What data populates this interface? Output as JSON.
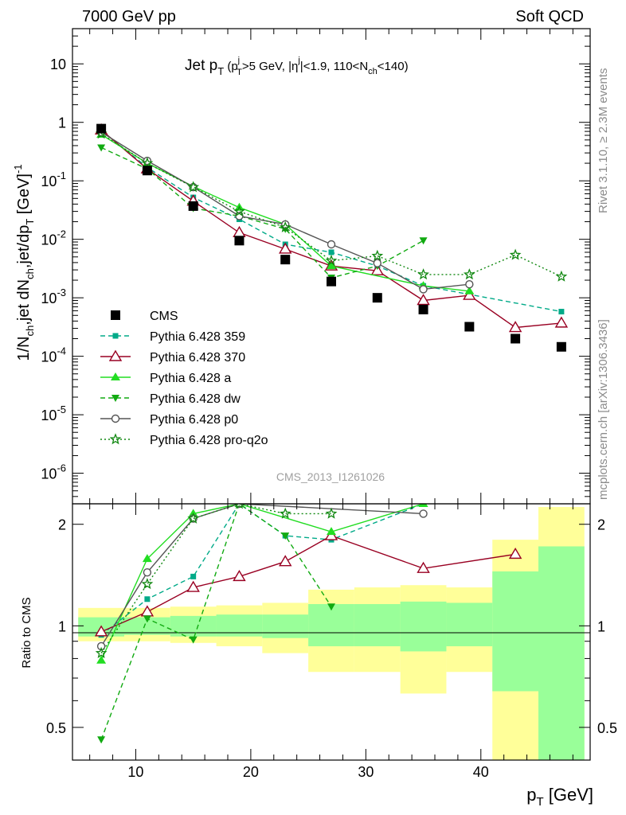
{
  "header": {
    "left_label": "7000 GeV pp",
    "right_label": "Soft QCD"
  },
  "side_labels": {
    "rivet": "Rivet 3.1.10, ≥ 2.3M events",
    "mcplots": "mcplots.cern.ch [arXiv:1306.3436]"
  },
  "watermark": "CMS_2013_I1261026",
  "chart_data": [
    {
      "type": "scatter",
      "panel": "main",
      "title": "Jet pT (pTj>5 GeV, |ηj|<1.9, 110<Nch<140)",
      "xlabel": "pT [GeV]",
      "ylabel": "1/Nch,jet dNch,jet/dpT [GeV]^-1",
      "xlim": [
        4.5,
        49.5
      ],
      "ylim": [
        3e-07,
        40
      ],
      "yscale": "log",
      "grid": false,
      "legend_position": "left-middle",
      "x_ticks": [
        10,
        20,
        30,
        40
      ],
      "y_ticks": [
        "10^-6",
        "10^-5",
        "10^-4",
        "10^-3",
        "10^-2",
        "10^-1",
        "1",
        "10"
      ],
      "series": [
        {
          "name": "CMS",
          "color": "#000000",
          "marker": "square",
          "x": [
            7,
            11,
            15,
            19,
            23,
            27,
            31,
            35,
            39,
            43,
            47
          ],
          "y": [
            0.78,
            0.15,
            0.037,
            0.0095,
            0.0045,
            0.0019,
            0.001,
            0.00063,
            0.00032,
            0.0002,
            0.000145
          ]
        },
        {
          "name": "Pythia 6.428 359",
          "color": "#00aa88",
          "marker": "small-square",
          "dash": "dashed",
          "x": [
            7,
            11,
            15,
            19,
            23,
            27,
            31,
            35,
            47
          ],
          "y": [
            0.73,
            0.17,
            0.052,
            0.022,
            0.0082,
            0.006,
            0.0035,
            0.0016,
            0.00058
          ]
        },
        {
          "name": "Pythia 6.428 370",
          "color": "#990022",
          "marker": "open-triangle",
          "dash": "solid",
          "x": [
            7,
            11,
            15,
            19,
            23,
            27,
            31,
            35,
            39,
            43,
            47
          ],
          "y": [
            0.74,
            0.16,
            0.045,
            0.013,
            0.0068,
            0.0035,
            0.0029,
            0.0009,
            0.0011,
            0.00031,
            0.00037
          ]
        },
        {
          "name": "Pythia 6.428 a",
          "color": "#22dd22",
          "marker": "triangle",
          "dash": "solid",
          "x": [
            7,
            11,
            15,
            19,
            23,
            27,
            35,
            39
          ],
          "y": [
            0.62,
            0.2,
            0.08,
            0.035,
            0.018,
            0.0035,
            0.0016,
            0.0013
          ]
        },
        {
          "name": "Pythia 6.428 dw",
          "color": "#11aa11",
          "marker": "down-triangle",
          "dash": "dashed",
          "x": [
            7,
            11,
            15,
            19,
            23,
            27,
            31,
            35
          ],
          "y": [
            0.37,
            0.16,
            0.034,
            0.025,
            0.015,
            0.0022,
            0.0035,
            0.0095
          ]
        },
        {
          "name": "Pythia 6.428 p0",
          "color": "#555555",
          "marker": "open-circle",
          "dash": "solid",
          "x": [
            7,
            11,
            15,
            19,
            23,
            27,
            31,
            35,
            39
          ],
          "y": [
            0.68,
            0.22,
            0.078,
            0.025,
            0.018,
            0.0082,
            0.0039,
            0.0014,
            0.0017
          ]
        },
        {
          "name": "Pythia 6.428 pro-q2o",
          "color": "#118811",
          "marker": "star",
          "dash": "dotted",
          "x": [
            7,
            11,
            15,
            19,
            23,
            27,
            31,
            35,
            39,
            43,
            47
          ],
          "y": [
            0.64,
            0.2,
            0.078,
            0.03,
            0.016,
            0.0043,
            0.0052,
            0.0025,
            0.0025,
            0.0054,
            0.0023
          ]
        }
      ]
    },
    {
      "type": "scatter",
      "panel": "ratio",
      "ylabel": "Ratio to CMS",
      "xlabel": "pT [GeV]",
      "xlim": [
        4.5,
        49.5
      ],
      "ylim": [
        0.4,
        2.3
      ],
      "yscale": "log",
      "y_ticks": [
        "0.5",
        "1",
        "2"
      ],
      "bands": {
        "yellow": {
          "color": "#ffff99",
          "bins": [
            [
              5,
              9,
              0.9,
              1.13
            ],
            [
              9,
              13,
              0.9,
              1.13
            ],
            [
              13,
              17,
              0.89,
              1.14
            ],
            [
              17,
              21,
              0.87,
              1.15
            ],
            [
              21,
              25,
              0.83,
              1.17
            ],
            [
              25,
              29,
              0.73,
              1.28
            ],
            [
              29,
              33,
              0.73,
              1.3
            ],
            [
              33,
              37,
              0.63,
              1.32
            ],
            [
              37,
              41,
              0.73,
              1.3
            ],
            [
              41,
              45,
              0.4,
              1.8
            ],
            [
              45,
              49,
              0.4,
              2.25
            ]
          ]
        },
        "green": {
          "color": "#99ff99",
          "bins": [
            [
              5,
              9,
              0.93,
              1.06
            ],
            [
              9,
              13,
              0.94,
              1.06
            ],
            [
              13,
              17,
              0.93,
              1.07
            ],
            [
              17,
              21,
              0.93,
              1.08
            ],
            [
              21,
              25,
              0.92,
              1.08
            ],
            [
              25,
              29,
              0.87,
              1.16
            ],
            [
              29,
              33,
              0.87,
              1.16
            ],
            [
              33,
              37,
              0.84,
              1.18
            ],
            [
              37,
              41,
              0.87,
              1.17
            ],
            [
              41,
              45,
              0.64,
              1.45
            ],
            [
              45,
              49,
              0.4,
              1.72
            ]
          ]
        }
      },
      "series": [
        {
          "name": "Pythia 6.428 359",
          "color": "#00aa88",
          "x": [
            7,
            11,
            15,
            19,
            23,
            27,
            35
          ],
          "y": [
            0.94,
            1.2,
            1.4,
            2.3,
            1.85,
            1.8,
            2.3
          ]
        },
        {
          "name": "Pythia 6.428 370",
          "color": "#990022",
          "x": [
            7,
            11,
            15,
            19,
            23,
            27,
            35,
            43
          ],
          "y": [
            0.96,
            1.1,
            1.3,
            1.4,
            1.55,
            1.85,
            1.48,
            1.63
          ]
        },
        {
          "name": "Pythia 6.428 a",
          "color": "#22dd22",
          "x": [
            7,
            11,
            15,
            19,
            27,
            35
          ],
          "y": [
            0.79,
            1.58,
            2.15,
            2.3,
            1.9,
            2.3
          ]
        },
        {
          "name": "Pythia 6.428 dw",
          "color": "#11aa11",
          "x": [
            7,
            11,
            15,
            19,
            23,
            27
          ],
          "y": [
            0.46,
            1.05,
            0.91,
            2.3,
            1.85,
            1.14
          ]
        },
        {
          "name": "Pythia 6.428 p0",
          "color": "#555555",
          "x": [
            7,
            11,
            15,
            19,
            35
          ],
          "y": [
            0.87,
            1.44,
            2.08,
            2.3,
            2.15
          ]
        },
        {
          "name": "Pythia 6.428 pro-q2o",
          "color": "#118811",
          "x": [
            7,
            11,
            15,
            19,
            23,
            27
          ],
          "y": [
            0.83,
            1.33,
            2.08,
            2.3,
            2.15,
            2.15
          ]
        }
      ]
    }
  ]
}
